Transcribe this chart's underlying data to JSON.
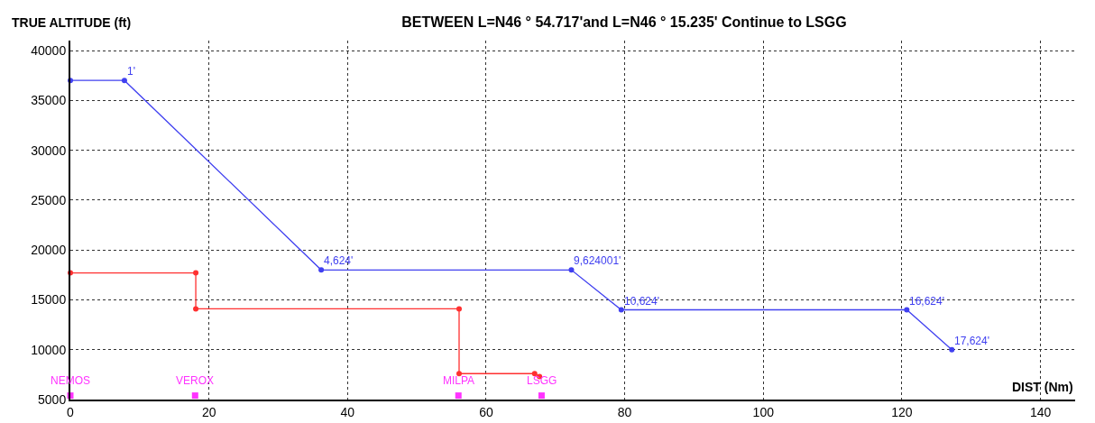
{
  "chart_data": {
    "type": "line",
    "title": "BETWEEN L=N46 ° 54.717'and L=N46 ° 15.235' Continue to LSGG",
    "xlabel": "DIST (Nm)",
    "ylabel": "TRUE ALTITUDE (ft)",
    "xlim": [
      0,
      145
    ],
    "xticks": [
      0,
      20,
      40,
      60,
      80,
      100,
      120,
      140
    ],
    "ylim": [
      5000,
      41000
    ],
    "yticks": [
      5000,
      10000,
      15000,
      20000,
      25000,
      30000,
      35000,
      40000
    ],
    "grid": true,
    "marker": "circle",
    "line_style": "solid",
    "series": [
      {
        "color": "#4040f0",
        "x": [
          0,
          7.8,
          36.2,
          72.3,
          79.5,
          120.7,
          127.2
        ],
        "values": [
          37000,
          37000,
          18000,
          18000,
          14000,
          14000,
          10000
        ]
      },
      {
        "color": "#ff3030",
        "x": [
          0,
          18.1,
          18.1,
          56.1,
          56.1,
          67,
          67.7
        ],
        "values": [
          17700,
          17700,
          14100,
          14100,
          7600,
          7600,
          7300
        ]
      },
      {
        "type": "scatter",
        "color": "#ff33ff",
        "marker": "square",
        "x": [
          0,
          18,
          56,
          68
        ],
        "values": [
          5400,
          5400,
          5400,
          5400
        ]
      }
    ],
    "annotations": [
      {
        "text": "1'",
        "x": 7.8,
        "y": 37000
      },
      {
        "text": "4,624'",
        "x": 36.2,
        "y": 18000
      },
      {
        "text": "9,624001'",
        "x": 72.3,
        "y": 18000
      },
      {
        "text": "10,624'",
        "x": 79.5,
        "y": 14000
      },
      {
        "text": "16,624'",
        "x": 120.7,
        "y": 14000
      },
      {
        "text": "17,624'",
        "x": 127.2,
        "y": 10000
      },
      {
        "text": "NEMOS",
        "x": 0,
        "y": 5400
      },
      {
        "text": "VEROX",
        "x": 18,
        "y": 5400
      },
      {
        "text": "MILPA",
        "x": 56,
        "y": 5400
      },
      {
        "text": "LSGG",
        "x": 68,
        "y": 5400
      }
    ]
  }
}
